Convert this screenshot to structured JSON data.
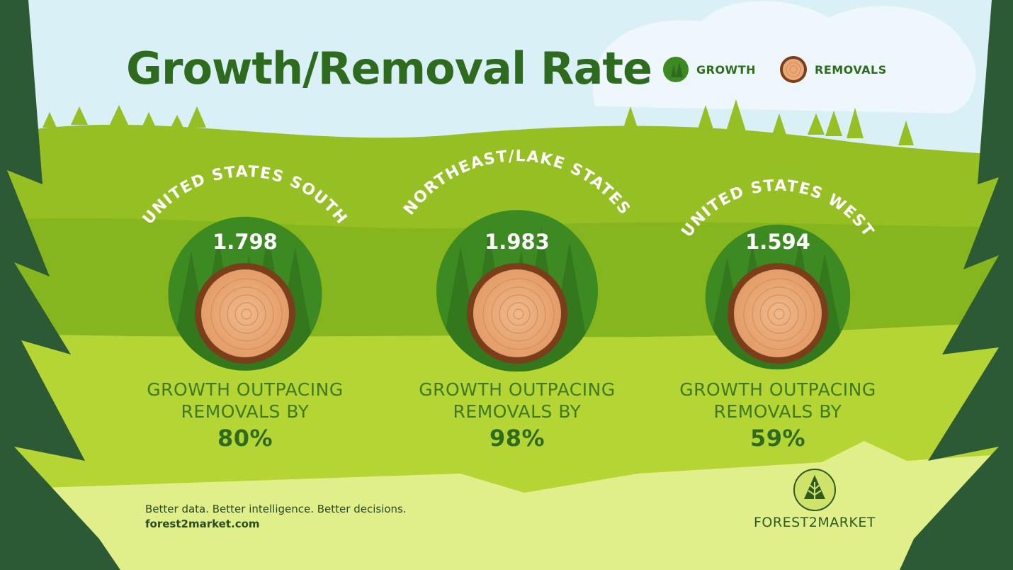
{
  "title": "Growth/Removal Rate",
  "legend": [
    {
      "label": "GROWTH",
      "icon": "growth-circle-icon",
      "color": "#3e8a22"
    },
    {
      "label": "REMOVALS",
      "icon": "log-icon",
      "color": "#e9a877"
    }
  ],
  "chart_data": {
    "type": "bubble",
    "title": "Growth/Removal Rate",
    "series": [
      {
        "name": "GROWTH",
        "values": [
          1.798,
          1.983,
          1.594
        ]
      },
      {
        "name": "REMOVALS",
        "values": [
          1,
          1,
          1
        ]
      }
    ],
    "categories": [
      "UNITED STATES SOUTH",
      "NORTHEAST/LAKE STATES",
      "UNITED STATES WEST"
    ],
    "regions": [
      {
        "name": "UNITED STATES SOUTH",
        "ratio": "1.798",
        "ratio_value": 1.798,
        "caption_line1": "GROWTH OUTPACING",
        "caption_line2": "REMOVALS BY",
        "percent": "80%"
      },
      {
        "name": "NORTHEAST/LAKE STATES",
        "ratio": "1.983",
        "ratio_value": 1.983,
        "caption_line1": "GROWTH OUTPACING",
        "caption_line2": "REMOVALS BY",
        "percent": "98%"
      },
      {
        "name": "UNITED STATES WEST",
        "ratio": "1.594",
        "ratio_value": 1.594,
        "caption_line1": "GROWTH OUTPACING",
        "caption_line2": "REMOVALS BY",
        "percent": "59%"
      }
    ]
  },
  "footer": {
    "tagline": "Better data. Better intelligence. Better decisions.",
    "url": "forest2market.com",
    "brand": "FOREST2MARKET"
  },
  "colors": {
    "sky": "#d9f0f6",
    "dark_green": "#2f6b1f",
    "hill_green": "#8fbf1e",
    "meadow_green": "#b6d63a",
    "light_green": "#e1ef8a",
    "pine_dark": "#2c5a34",
    "log_face": "#e9a877",
    "log_bark": "#7a3e1a"
  }
}
